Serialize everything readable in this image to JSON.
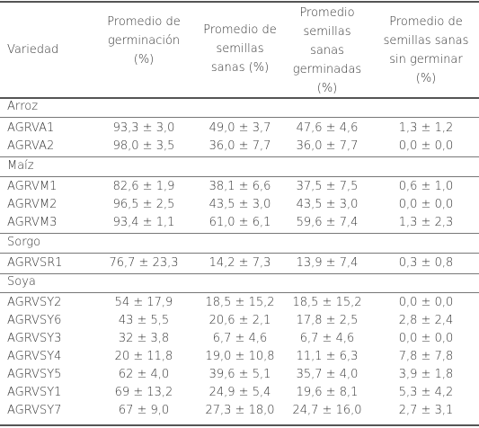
{
  "table": {
    "headers": [
      [
        "Variedad"
      ],
      [
        "Promedio de",
        "germinación",
        "(%)"
      ],
      [
        "Promedio de",
        "semillas",
        "sanas (%)"
      ],
      [
        "Promedio",
        "semillas",
        "sanas",
        "germinadas",
        "(%)"
      ],
      [
        "Promedio de",
        "semillas sanas",
        "sin germinar",
        "(%)"
      ]
    ],
    "groups": [
      {
        "name": "Arroz",
        "rows": [
          [
            "AGRVA1",
            "93,3 ± 3,0",
            "49,0 ± 3,7",
            "47,6 ± 4,6",
            "1,3 ± 1,2"
          ],
          [
            "AGRVA2",
            "98,0 ± 3,5",
            "36,0 ± 7,7",
            "36,0 ± 7,7",
            "0,0 ± 0,0"
          ]
        ]
      },
      {
        "name": "Maíz",
        "rows": [
          [
            "AGRVM1",
            "82,6 ± 1,9",
            "38,1 ± 6,6",
            "37,5 ± 7,5",
            "0,6 ± 1,0"
          ],
          [
            "AGRVM2",
            "96,5 ± 2,5",
            "43,5 ± 3,0",
            "43,5 ± 3,0",
            "0,0 ± 0,0"
          ],
          [
            "AGRVM3",
            "93,4 ± 1,1",
            "61,0 ± 6,1",
            "59,6 ± 7,4",
            "1,3 ± 2,3"
          ]
        ]
      },
      {
        "name": "Sorgo",
        "rows": [
          [
            "AGRVSR1",
            "76,7 ± 23,3",
            "14,2 ± 7,3",
            "13,9 ± 7,4",
            "0,3 ± 0,8"
          ]
        ]
      },
      {
        "name": "Soya",
        "rows": [
          [
            "AGRVSY2",
            "54 ± 17,9",
            "18,5 ± 15,2",
            "18,5 ± 15,2",
            "0,0 ± 0,0"
          ],
          [
            "AGRVSY6",
            "43 ± 5,5",
            "20,6 ± 2,1",
            "17,8 ± 2,5",
            "2,8 ± 2,4"
          ],
          [
            "AGRVSY3",
            "32 ± 3,8",
            "6,7 ± 4,6",
            "6,7 ± 4,6",
            "0,0 ± 0,0"
          ],
          [
            "AGRVSY4",
            "20 ± 11,8",
            "19,0 ± 10,8",
            "11,1 ± 6,3",
            "7,8 ± 7,8"
          ],
          [
            "AGRVSY5",
            "62 ± 4,0",
            "39,6 ± 5,1",
            "35,7 ± 4,0",
            "3,9 ± 1,8"
          ],
          [
            "AGRVSY1",
            "69 ± 13,2",
            "24,9 ± 5,4",
            "19,6 ± 8,1",
            "5,3 ± 4,2"
          ],
          [
            "AGRVSY7",
            "67 ± 9,0",
            "27,3 ± 18,0",
            "24,7 ± 16,0",
            "2,7 ± 3,1"
          ]
        ]
      }
    ]
  }
}
